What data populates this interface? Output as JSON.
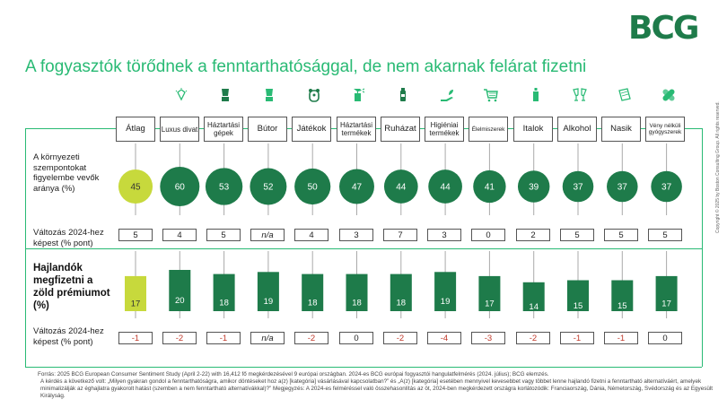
{
  "brand": {
    "logo_text": "BCG",
    "color": "#1e7b4a"
  },
  "title": "A fogyasztók törődnek a fenntarthatósággal, de nem akarnak felárat fizetni",
  "colors": {
    "accent": "#29ba74",
    "dark_green": "#1e7b4a",
    "highlight": "#c7d93c"
  },
  "categories": [
    {
      "label": "Átlag",
      "icon": ""
    },
    {
      "label": "Luxus divat",
      "icon": "diamond-icon"
    },
    {
      "label": "Háztartási gépek",
      "icon": "blender-icon"
    },
    {
      "label": "Bútor",
      "icon": "chair-icon"
    },
    {
      "label": "Játékok",
      "icon": "teddy-bear-icon"
    },
    {
      "label": "Háztartási termékek",
      "icon": "spray-bottle-icon"
    },
    {
      "label": "Ruházat",
      "icon": "clothing-icon"
    },
    {
      "label": "Higiéniai termékek",
      "icon": "hand-plant-icon"
    },
    {
      "label": "Élelmiszerek",
      "icon": "shopping-cart-icon"
    },
    {
      "label": "Italok",
      "icon": "bottle-icon"
    },
    {
      "label": "Alkohol",
      "icon": "wine-glasses-icon"
    },
    {
      "label": "Nasik",
      "icon": "snack-icon"
    },
    {
      "label": "Vény nélküli gyógyszerek",
      "icon": "bandage-icon"
    }
  ],
  "rows": {
    "env_label": "A környezeti szempontokat figyelembe vevők aránya (%)",
    "change1_label": "Változás 2024-hez képest (% pont)",
    "premium_label": "Hajlandók megfizetni a zöld prémiumot (%)",
    "change2_label": "Változás 2024-hez képest (% pont)",
    "change1": [
      "5",
      "4",
      "5",
      "n/a",
      "4",
      "3",
      "7",
      "3",
      "0",
      "2",
      "5",
      "5",
      "5"
    ],
    "change2": [
      "-1",
      "-2",
      "-1",
      "n/a",
      "-2",
      "0",
      "-2",
      "-4",
      "-3",
      "-2",
      "-1",
      "-1",
      "0"
    ]
  },
  "chart_data": [
    {
      "type": "scatter",
      "categories": [
        "Átlag",
        "Luxus divat",
        "Háztartási gépek",
        "Bútor",
        "Játékok",
        "Háztartási termékek",
        "Ruházat",
        "Higiéniai termékek",
        "Élelmiszerek",
        "Italok",
        "Alkohol",
        "Nasik",
        "Vény nélküli gyógyszerek"
      ],
      "values": [
        45,
        60,
        53,
        52,
        50,
        47,
        44,
        44,
        41,
        39,
        37,
        37,
        37
      ],
      "encoding": "bubble-size",
      "ylabel": "A környezeti szempontokat figyelembe vevők aránya (%)"
    },
    {
      "type": "bar",
      "categories": [
        "Átlag",
        "Luxus divat",
        "Háztartási gépek",
        "Bútor",
        "Játékok",
        "Háztartási termékek",
        "Ruházat",
        "Higiéniai termékek",
        "Élelmiszerek",
        "Italok",
        "Alkohol",
        "Nasik",
        "Vény nélküli gyógyszerek"
      ],
      "values": [
        17,
        20,
        18,
        19,
        18,
        18,
        18,
        19,
        17,
        14,
        15,
        15,
        17
      ],
      "ylabel": "Hajlandók megfizetni a zöld prémiumot (%)"
    }
  ],
  "footnote": {
    "line1": "Forrás: 2025 BCG European Consumer Sentiment Study (April 2-22) with 16,412 fő megkérdezésével 9 európai országban. 2024-es BCG európai fogyasztói hangulatfelmérés (2024. július); BCG elemzés.",
    "line2": "A kérdés a következő volt: „Milyen gyakran gondol a fenntarthatóságra, amikor döntéseket hoz a(z) [kategória] vásárlásával kapcsolatban?” és „A(z) [kategória] esetében mennyivel kevesebbet vagy többet lenne hajlandó fizetni a fenntartható alternatíváért, amelyek minimalizálják az éghajlatra gyakorolt hatást (szemben a nem fenntartható alternatívákkal)?” Megjegyzés: A 2024-es felméréssel való összehasonlítás az öt, 2024-ben megkérdezett országra korlátozódik: Franciaország, Dánia, Németország, Svédország és az Egyesült Királyság."
  },
  "copyright": "Copyright © 2025 by Boston Consulting Group. All rights reserved."
}
